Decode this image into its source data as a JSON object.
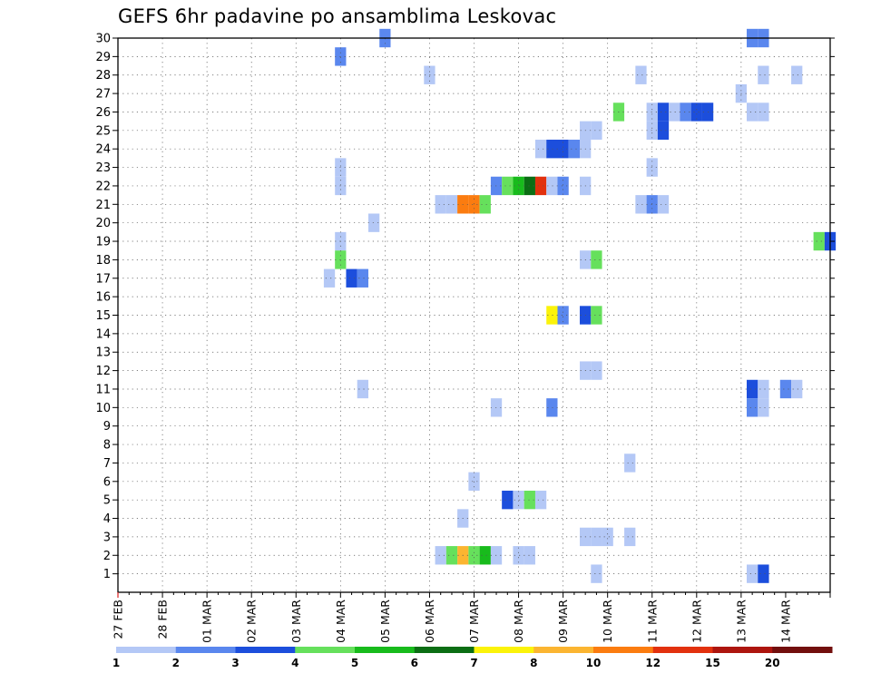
{
  "title": "GEFS 6hr padavine po ansamblima Leskovac",
  "chart_data": {
    "type": "heatmap",
    "title": "GEFS 6hr padavine po ansamblima Leskovac",
    "xlabel": "",
    "ylabel": "",
    "x_unit": "6-hour steps from 27 FEB 00Z",
    "x_range": [
      0,
      64
    ],
    "y_range": [
      0,
      30
    ],
    "y_ticks": [
      1,
      2,
      3,
      4,
      5,
      6,
      7,
      8,
      9,
      10,
      11,
      12,
      13,
      14,
      15,
      16,
      17,
      18,
      19,
      20,
      21,
      22,
      23,
      24,
      25,
      26,
      27,
      28,
      29,
      30
    ],
    "x_tick_labels": [
      "27 FEB",
      "28 FEB",
      "01 MAR",
      "02 MAR",
      "03 MAR",
      "04 MAR",
      "05 MAR",
      "06 MAR",
      "07 MAR",
      "08 MAR",
      "09 MAR",
      "10 MAR",
      "11 MAR",
      "12 MAR",
      "13 MAR",
      "14 MAR"
    ],
    "grid": "dotted",
    "legend": {
      "position": "bottom",
      "labels": [
        "1",
        "2",
        "3",
        "4",
        "5",
        "6",
        "7",
        "8",
        "10",
        "12",
        "15",
        "20"
      ],
      "colors": [
        "#b4c8f6",
        "#5a87ee",
        "#1c4edc",
        "#66e05c",
        "#18bb1c",
        "#0b6e14",
        "#fbf30a",
        "#fbb531",
        "#fb7c10",
        "#e2310e",
        "#ad150e",
        "#720f0d"
      ]
    },
    "cells": [
      {
        "member": 30,
        "step": 24,
        "level": 1
      },
      {
        "member": 30,
        "step": 57,
        "level": 1
      },
      {
        "member": 30,
        "step": 58,
        "level": 1
      },
      {
        "member": 29,
        "step": 20,
        "level": 1
      },
      {
        "member": 28,
        "step": 28,
        "level": 0
      },
      {
        "member": 28,
        "step": 47,
        "level": 0
      },
      {
        "member": 28,
        "step": 58,
        "level": 0
      },
      {
        "member": 28,
        "step": 61,
        "level": 0
      },
      {
        "member": 27,
        "step": 56,
        "level": 0
      },
      {
        "member": 26,
        "step": 45,
        "level": 3
      },
      {
        "member": 26,
        "step": 48,
        "level": 0
      },
      {
        "member": 26,
        "step": 49,
        "level": 2
      },
      {
        "member": 26,
        "step": 50,
        "level": 0
      },
      {
        "member": 26,
        "step": 51,
        "level": 1
      },
      {
        "member": 26,
        "step": 52,
        "level": 2
      },
      {
        "member": 26,
        "step": 53,
        "level": 2
      },
      {
        "member": 26,
        "step": 57,
        "level": 0
      },
      {
        "member": 26,
        "step": 58,
        "level": 0
      },
      {
        "member": 25,
        "step": 42,
        "level": 0
      },
      {
        "member": 25,
        "step": 43,
        "level": 0
      },
      {
        "member": 25,
        "step": 48,
        "level": 0
      },
      {
        "member": 25,
        "step": 49,
        "level": 2
      },
      {
        "member": 24,
        "step": 38,
        "level": 0
      },
      {
        "member": 24,
        "step": 39,
        "level": 2
      },
      {
        "member": 24,
        "step": 40,
        "level": 2
      },
      {
        "member": 24,
        "step": 41,
        "level": 1
      },
      {
        "member": 24,
        "step": 42,
        "level": 0
      },
      {
        "member": 23,
        "step": 20,
        "level": 0
      },
      {
        "member": 23,
        "step": 48,
        "level": 0
      },
      {
        "member": 22,
        "step": 20,
        "level": 0
      },
      {
        "member": 22,
        "step": 34,
        "level": 1
      },
      {
        "member": 22,
        "step": 35,
        "level": 3
      },
      {
        "member": 22,
        "step": 36,
        "level": 4
      },
      {
        "member": 22,
        "step": 37,
        "level": 5
      },
      {
        "member": 22,
        "step": 38,
        "level": 9
      },
      {
        "member": 22,
        "step": 39,
        "level": 0
      },
      {
        "member": 22,
        "step": 40,
        "level": 1
      },
      {
        "member": 22,
        "step": 42,
        "level": 0
      },
      {
        "member": 21,
        "step": 29,
        "level": 0
      },
      {
        "member": 21,
        "step": 30,
        "level": 0
      },
      {
        "member": 21,
        "step": 31,
        "level": 8
      },
      {
        "member": 21,
        "step": 32,
        "level": 8
      },
      {
        "member": 21,
        "step": 33,
        "level": 3
      },
      {
        "member": 21,
        "step": 47,
        "level": 0
      },
      {
        "member": 21,
        "step": 48,
        "level": 1
      },
      {
        "member": 21,
        "step": 49,
        "level": 0
      },
      {
        "member": 20,
        "step": 23,
        "level": 0
      },
      {
        "member": 19,
        "step": 20,
        "level": 0
      },
      {
        "member": 19,
        "step": 63,
        "level": 3
      },
      {
        "member": 19,
        "step": 64,
        "level": 2
      },
      {
        "member": 18,
        "step": 20,
        "level": 3
      },
      {
        "member": 18,
        "step": 42,
        "level": 0
      },
      {
        "member": 18,
        "step": 43,
        "level": 3
      },
      {
        "member": 17,
        "step": 19,
        "level": 0
      },
      {
        "member": 17,
        "step": 21,
        "level": 2
      },
      {
        "member": 17,
        "step": 22,
        "level": 1
      },
      {
        "member": 15,
        "step": 39,
        "level": 6
      },
      {
        "member": 15,
        "step": 40,
        "level": 1
      },
      {
        "member": 15,
        "step": 42,
        "level": 2
      },
      {
        "member": 15,
        "step": 43,
        "level": 3
      },
      {
        "member": 12,
        "step": 42,
        "level": 0
      },
      {
        "member": 12,
        "step": 43,
        "level": 0
      },
      {
        "member": 11,
        "step": 22,
        "level": 0
      },
      {
        "member": 11,
        "step": 57,
        "level": 2
      },
      {
        "member": 11,
        "step": 58,
        "level": 0
      },
      {
        "member": 11,
        "step": 60,
        "level": 1
      },
      {
        "member": 11,
        "step": 61,
        "level": 0
      },
      {
        "member": 10,
        "step": 34,
        "level": 0
      },
      {
        "member": 10,
        "step": 39,
        "level": 1
      },
      {
        "member": 10,
        "step": 57,
        "level": 1
      },
      {
        "member": 10,
        "step": 58,
        "level": 0
      },
      {
        "member": 7,
        "step": 46,
        "level": 0
      },
      {
        "member": 6,
        "step": 32,
        "level": 0
      },
      {
        "member": 5,
        "step": 35,
        "level": 2
      },
      {
        "member": 5,
        "step": 36,
        "level": 0
      },
      {
        "member": 5,
        "step": 37,
        "level": 3
      },
      {
        "member": 5,
        "step": 38,
        "level": 0
      },
      {
        "member": 4,
        "step": 31,
        "level": 0
      },
      {
        "member": 3,
        "step": 42,
        "level": 0
      },
      {
        "member": 3,
        "step": 43,
        "level": 0
      },
      {
        "member": 3,
        "step": 44,
        "level": 0
      },
      {
        "member": 3,
        "step": 46,
        "level": 0
      },
      {
        "member": 2,
        "step": 29,
        "level": 0
      },
      {
        "member": 2,
        "step": 30,
        "level": 3
      },
      {
        "member": 2,
        "step": 31,
        "level": 7
      },
      {
        "member": 2,
        "step": 32,
        "level": 3
      },
      {
        "member": 2,
        "step": 33,
        "level": 4
      },
      {
        "member": 2,
        "step": 34,
        "level": 0
      },
      {
        "member": 2,
        "step": 36,
        "level": 0
      },
      {
        "member": 2,
        "step": 37,
        "level": 0
      },
      {
        "member": 1,
        "step": 43,
        "level": 0
      },
      {
        "member": 1,
        "step": 57,
        "level": 0
      },
      {
        "member": 1,
        "step": 58,
        "level": 2
      }
    ]
  }
}
